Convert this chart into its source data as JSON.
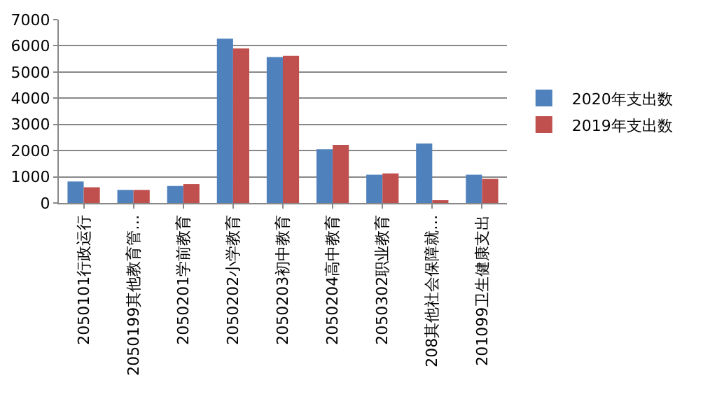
{
  "chart_data": {
    "type": "bar",
    "categories": [
      "2050101行政运行",
      "2050199其他教育管…",
      "2050201学前教育",
      "2050202小学教育",
      "2050203初中教育",
      "2050204高中教育",
      "2050302职业教育",
      "208其他社会保障就…",
      "201099卫生健康支出"
    ],
    "series": [
      {
        "name": "2020年支出数",
        "color": "#4f81bd",
        "values": [
          820,
          500,
          650,
          6270,
          5570,
          2050,
          1080,
          2270,
          1080
        ]
      },
      {
        "name": "2019年支出数",
        "color": "#c0504d",
        "values": [
          600,
          500,
          720,
          5900,
          5620,
          2220,
          1130,
          60,
          920
        ]
      }
    ],
    "ylim": [
      0,
      7000
    ],
    "yticks": [
      0,
      1000,
      2000,
      3000,
      4000,
      5000,
      6000,
      7000
    ],
    "grid": "y",
    "legend": "right"
  }
}
